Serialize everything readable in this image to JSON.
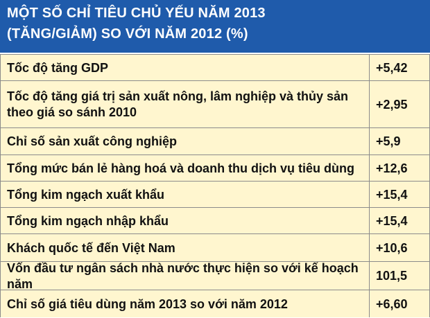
{
  "title": {
    "line1": "MỘT SỐ CHỈ TIÊU CHỦ YẾU NĂM 2013",
    "line2": "(TĂNG/GIẢM) SO VỚI NĂM 2012 (%)"
  },
  "colors": {
    "header_bg": "#1f5bab",
    "table_bg": "#fff6cf",
    "grid": "#8b8b8b"
  },
  "chart_data": {
    "type": "table",
    "title": "MỘT SỐ CHỈ TIÊU CHỦ YẾU NĂM 2013 (TĂNG/GIẢM) SO VỚI NĂM 2012 (%)",
    "rows": [
      {
        "label": "Tốc độ tăng GDP",
        "value": "+5,42"
      },
      {
        "label": "Tốc độ tăng giá trị sản xuất nông, lâm nghiệp và thủy sản theo giá so sánh 2010",
        "value": "+2,95"
      },
      {
        "label": "Chỉ số sản xuất công nghiệp",
        "value": "+5,9"
      },
      {
        "label": "Tổng mức bán lẻ hàng hoá và doanh thu dịch vụ tiêu dùng",
        "value": "+12,6"
      },
      {
        "label": "Tổng kim ngạch xuất khẩu",
        "value": "+15,4"
      },
      {
        "label": "Tổng kim ngạch nhập khẩu",
        "value": "+15,4"
      },
      {
        "label": "Khách quốc tế đến Việt Nam",
        "value": "+10,6"
      },
      {
        "label": "Vốn đầu tư ngân sách nhà nước thực hiện so với kế hoạch năm",
        "value": "101,5"
      },
      {
        "label": "Chỉ số giá tiêu dùng năm 2013 so với năm 2012",
        "value": "+6,60"
      }
    ]
  }
}
